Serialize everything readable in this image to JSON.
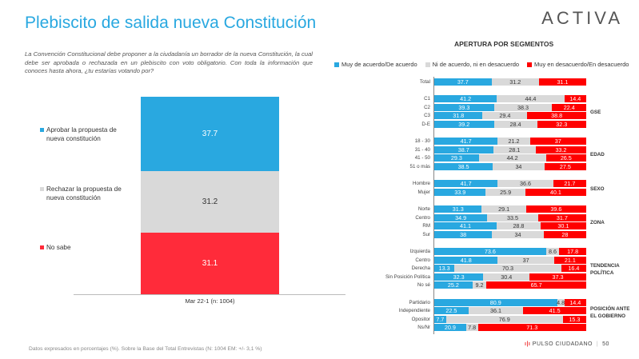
{
  "title": "Plebiscito de salida nueva Constitución",
  "logo": "ACTIVA",
  "question": "La Convención Constitucional debe proponer a la ciudadanía un borrador de la nueva Constitución, la cual debe ser aprobada o rechazada en un plebiscito con voto obligatorio. Con toda la información que conoces hasta ahora, ¿tu estarías votando por?",
  "colors": {
    "blue": "#29a8e0",
    "gray": "#d9d9d9",
    "red": "#ff0000",
    "mainred": "#ff2b3a"
  },
  "chart_data": [
    {
      "type": "bar",
      "stacked": true,
      "categories": [
        "Mar 22-1 (n: 1004)"
      ],
      "series": [
        {
          "name": "Aprobar la propuesta de nueva constitución",
          "values": [
            37.7
          ]
        },
        {
          "name": "Rechazar la propuesta de nueva constitución",
          "values": [
            31.2
          ]
        },
        {
          "name": "No sabe",
          "values": [
            31.1
          ]
        }
      ]
    },
    {
      "type": "bar",
      "orientation": "horizontal",
      "stacked": true,
      "title": "APERTURA POR SEGMENTOS",
      "legend": [
        "Muy de acuerdo/De acuerdo",
        "Ni de acuerdo, ni en desacuerdo",
        "Muy en desacuerdo/En desacuerdo"
      ],
      "groups": [
        {
          "name": "",
          "rows": [
            {
              "label": "Total",
              "values": [
                37.7,
                31.2,
                31.1
              ]
            }
          ]
        },
        {
          "name": "GSE",
          "rows": [
            {
              "label": "C1",
              "values": [
                41.2,
                44.4,
                14.4
              ]
            },
            {
              "label": "C2",
              "values": [
                39.3,
                38.3,
                22.4
              ]
            },
            {
              "label": "C3",
              "values": [
                31.8,
                29.4,
                38.8
              ]
            },
            {
              "label": "D-E",
              "values": [
                39.2,
                28.4,
                32.3
              ]
            }
          ]
        },
        {
          "name": "EDAD",
          "rows": [
            {
              "label": "18 - 30",
              "values": [
                41.7,
                21.2,
                37
              ]
            },
            {
              "label": "31 - 40",
              "values": [
                38.7,
                28.1,
                33.2
              ]
            },
            {
              "label": "41 - 50",
              "values": [
                29.3,
                44.2,
                26.5
              ]
            },
            {
              "label": "51 o más",
              "values": [
                38.5,
                34,
                27.5
              ]
            }
          ]
        },
        {
          "name": "SEXO",
          "rows": [
            {
              "label": "Hombre",
              "values": [
                41.7,
                36.6,
                21.7
              ]
            },
            {
              "label": "Mujer",
              "values": [
                33.9,
                25.9,
                40.1
              ]
            }
          ]
        },
        {
          "name": "ZONA",
          "rows": [
            {
              "label": "Norte",
              "values": [
                31.3,
                29.1,
                39.6
              ]
            },
            {
              "label": "Centro",
              "values": [
                34.9,
                33.5,
                31.7
              ]
            },
            {
              "label": "RM",
              "values": [
                41.1,
                28.8,
                30.1
              ]
            },
            {
              "label": "Sur",
              "values": [
                38,
                34,
                28
              ]
            }
          ]
        },
        {
          "name": "TENDENCIA POLÍTICA",
          "rows": [
            {
              "label": "Izquierda",
              "values": [
                73.6,
                8.6,
                17.8
              ]
            },
            {
              "label": "Centro",
              "values": [
                41.8,
                37,
                21.1
              ]
            },
            {
              "label": "Derecha",
              "values": [
                13.3,
                70.3,
                16.4
              ]
            },
            {
              "label": "Sin Posición Política",
              "values": [
                32.3,
                30.4,
                37.3
              ]
            },
            {
              "label": "No sé",
              "values": [
                25.2,
                9.2,
                65.7
              ]
            }
          ]
        },
        {
          "name": "POSICIÓN ANTE EL GOBIERNO",
          "rows": [
            {
              "label": "Partidario",
              "values": [
                80.9,
                4.8,
                14.4
              ]
            },
            {
              "label": "Independiente",
              "values": [
                22.5,
                36.1,
                41.5
              ]
            },
            {
              "label": "Opositor",
              "values": [
                7.7,
                76.9,
                15.3
              ]
            },
            {
              "label": "Ns/Nr",
              "values": [
                20.9,
                7.8,
                71.3
              ]
            }
          ]
        }
      ]
    }
  ],
  "footer": "Datos expresados en porcentajes (%). Sobre la Base del Total Entrevistas (N: 1004  EM: +/- 3,1 %)",
  "brand": "PULSO CIUDADANO",
  "page": "50"
}
